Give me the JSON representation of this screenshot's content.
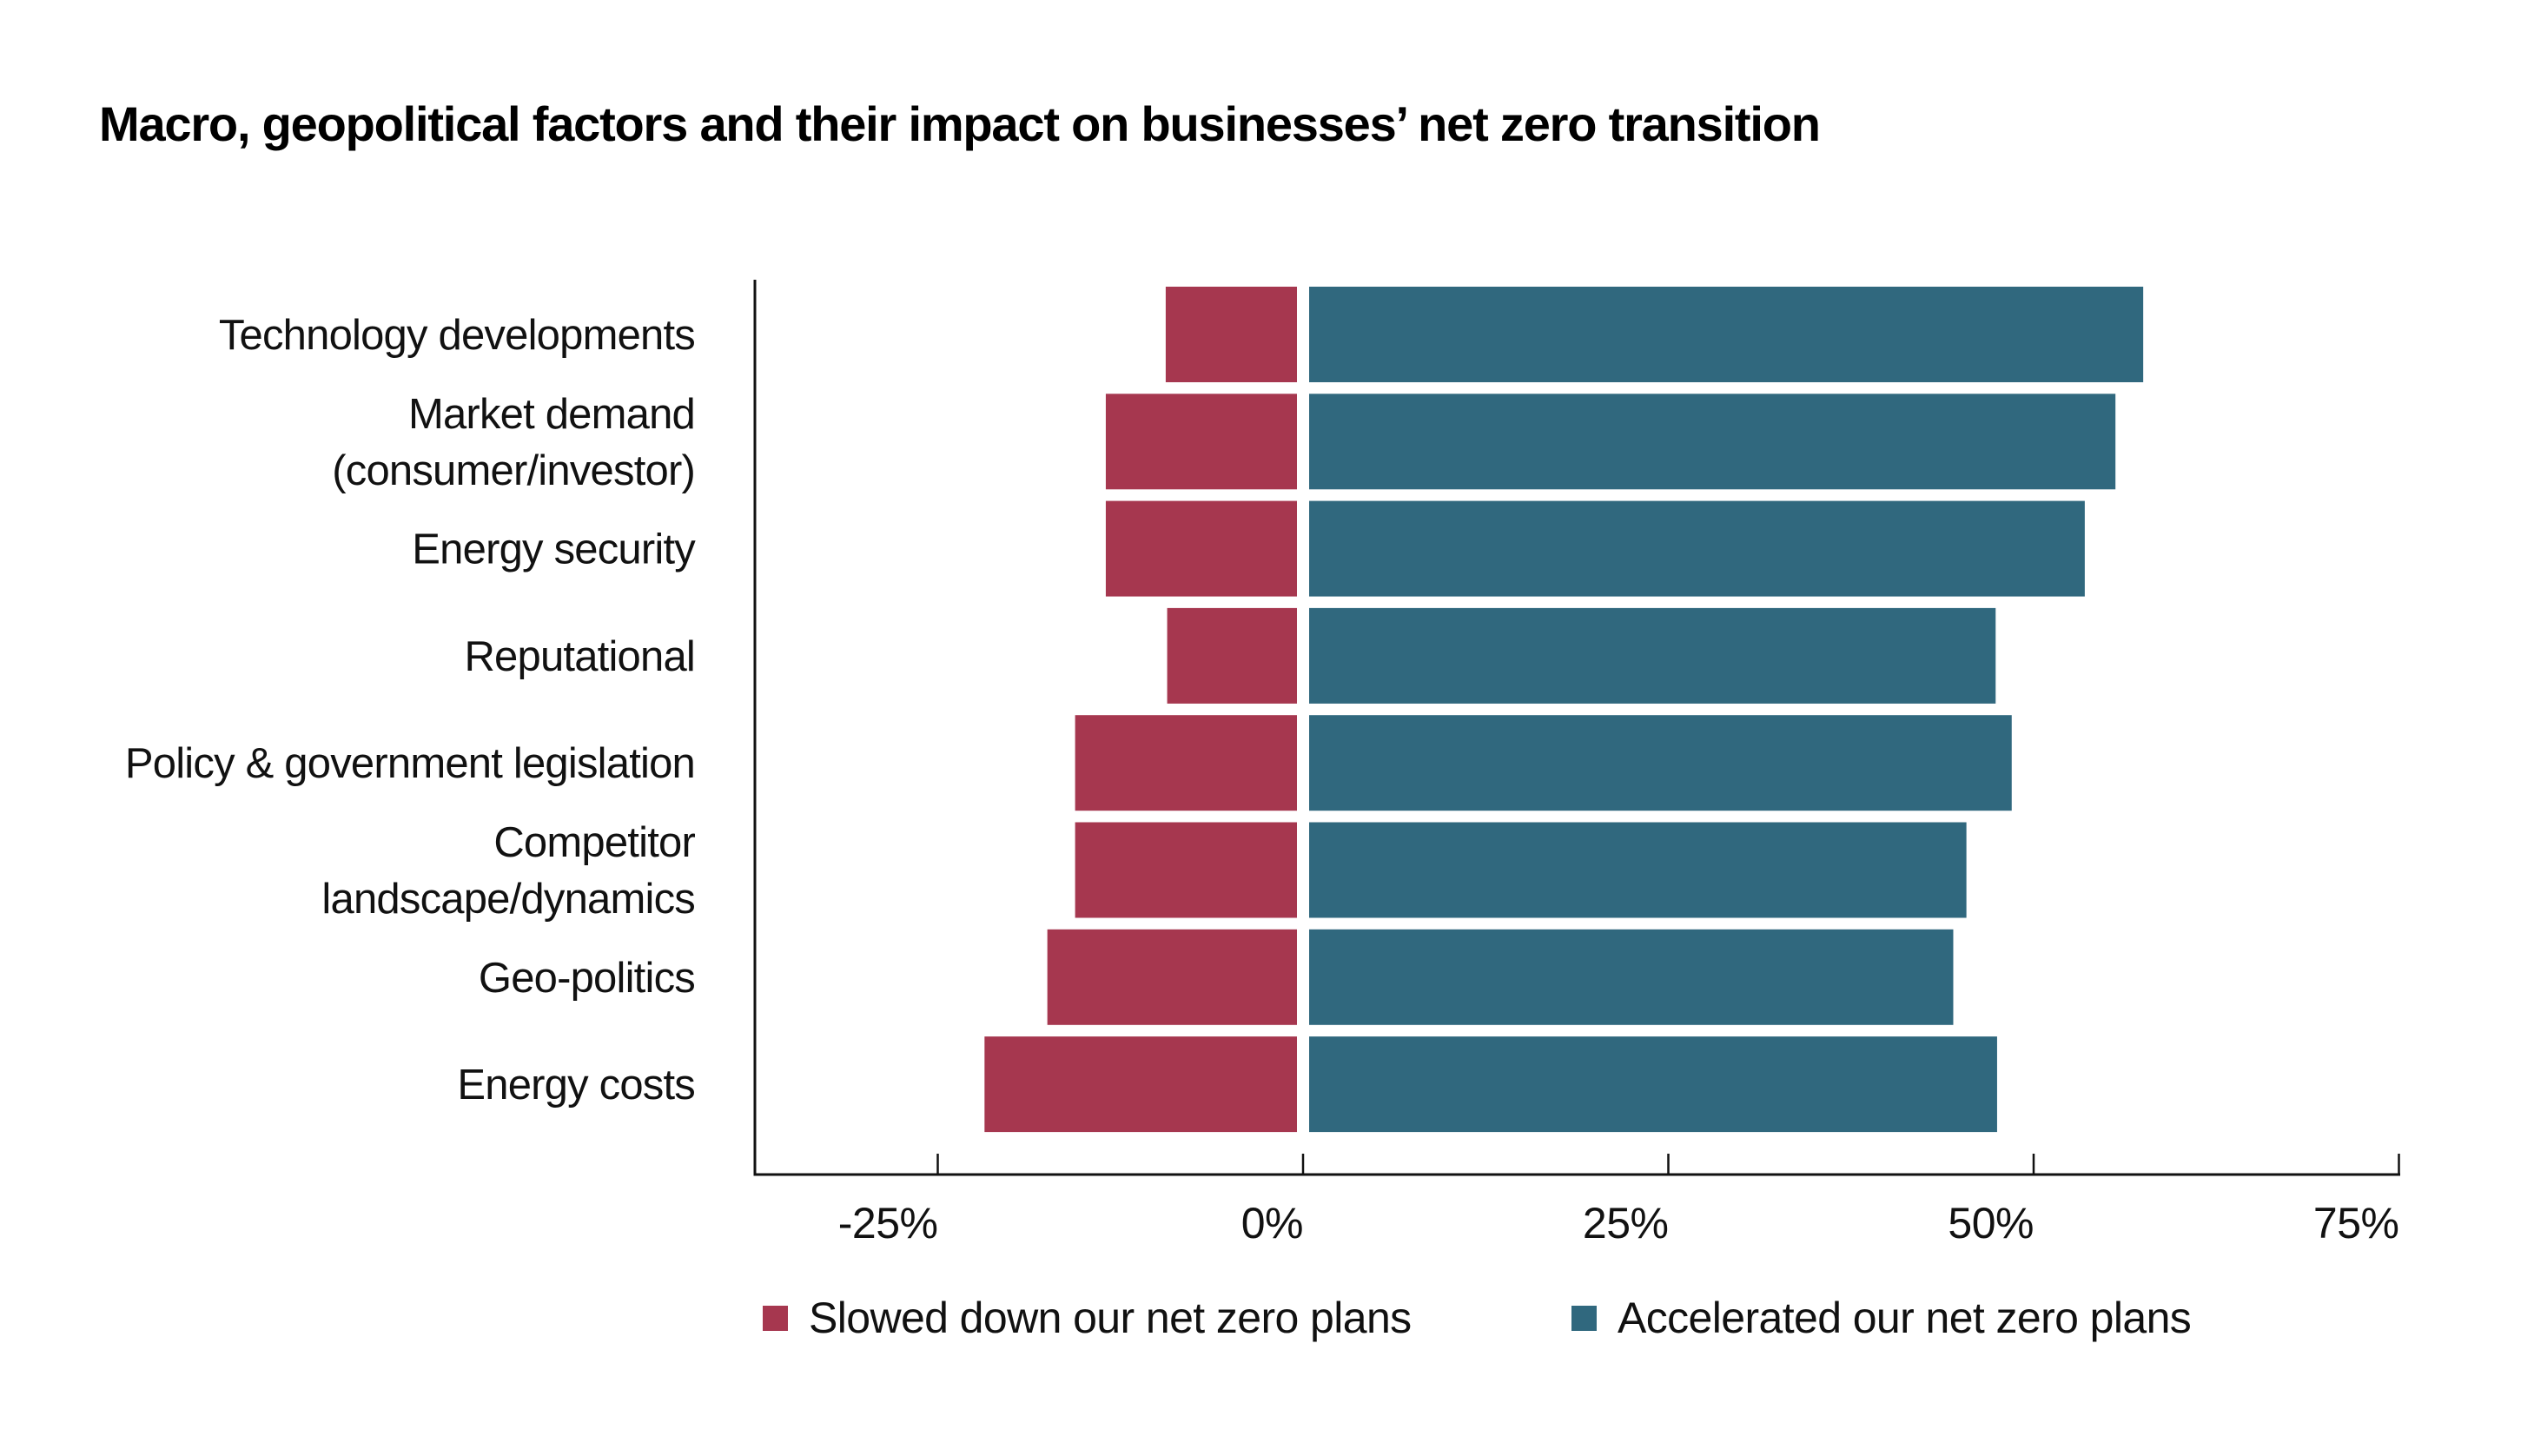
{
  "chart_data": {
    "type": "bar",
    "orientation": "horizontal",
    "stacked": "diverging",
    "title": "Macro, geopolitical factors and their impact on businesses’ net zero transition",
    "xlabel": "",
    "ylabel": "",
    "xlim": [
      -37.5,
      75
    ],
    "xticks": [
      -25,
      0,
      25,
      50,
      75
    ],
    "xtick_labels": [
      "-25%",
      "0%",
      "25%",
      "50%",
      "75%"
    ],
    "grid": false,
    "legend_position": "bottom",
    "categories": [
      [
        "Technology developments"
      ],
      [
        "Market demand",
        "(consumer/investor)"
      ],
      [
        "Energy security"
      ],
      [
        "Reputational"
      ],
      [
        "Policy & government legislation"
      ],
      [
        "Competitor",
        "landscape/dynamics"
      ],
      [
        "Geo-politics"
      ],
      [
        "Energy costs"
      ]
    ],
    "series": [
      {
        "name": "Slowed down our net zero plans",
        "color": "#A6374F",
        "values": [
          -9.4,
          -13.5,
          -13.5,
          -9.3,
          -15.6,
          -15.6,
          -17.5,
          -21.8
        ]
      },
      {
        "name": "Accelerated our net zero plans",
        "color": "#30687E",
        "values": [
          57.5,
          55.6,
          53.5,
          47.4,
          48.5,
          45.4,
          44.5,
          47.5
        ]
      }
    ]
  }
}
